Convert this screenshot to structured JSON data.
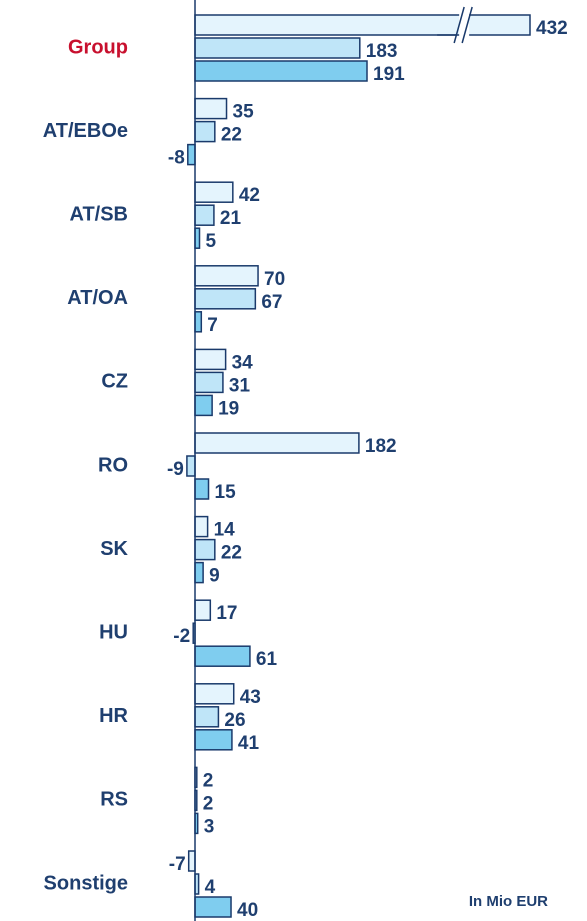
{
  "chart_data": {
    "type": "bar",
    "orientation": "horizontal",
    "categories": [
      "Group",
      "AT/EBOe",
      "AT/SB",
      "AT/OA",
      "CZ",
      "RO",
      "SK",
      "HU",
      "HR",
      "RS",
      "Sonstige"
    ],
    "highlight_category": "Group",
    "highlight_color": "#c8102e",
    "series": [
      {
        "color": "#e4f4fd",
        "values": [
          432,
          35,
          42,
          70,
          34,
          182,
          14,
          17,
          43,
          2,
          -7
        ]
      },
      {
        "color": "#bfe5f8",
        "values": [
          183,
          22,
          21,
          67,
          31,
          -9,
          22,
          -2,
          26,
          2,
          4
        ]
      },
      {
        "color": "#7fcdef",
        "values": [
          191,
          -8,
          5,
          7,
          19,
          15,
          9,
          61,
          41,
          3,
          40
        ]
      }
    ],
    "xlim": [
      -10,
      372
    ],
    "x_break": [
      290,
      350
    ],
    "note": "In Mio EUR"
  }
}
